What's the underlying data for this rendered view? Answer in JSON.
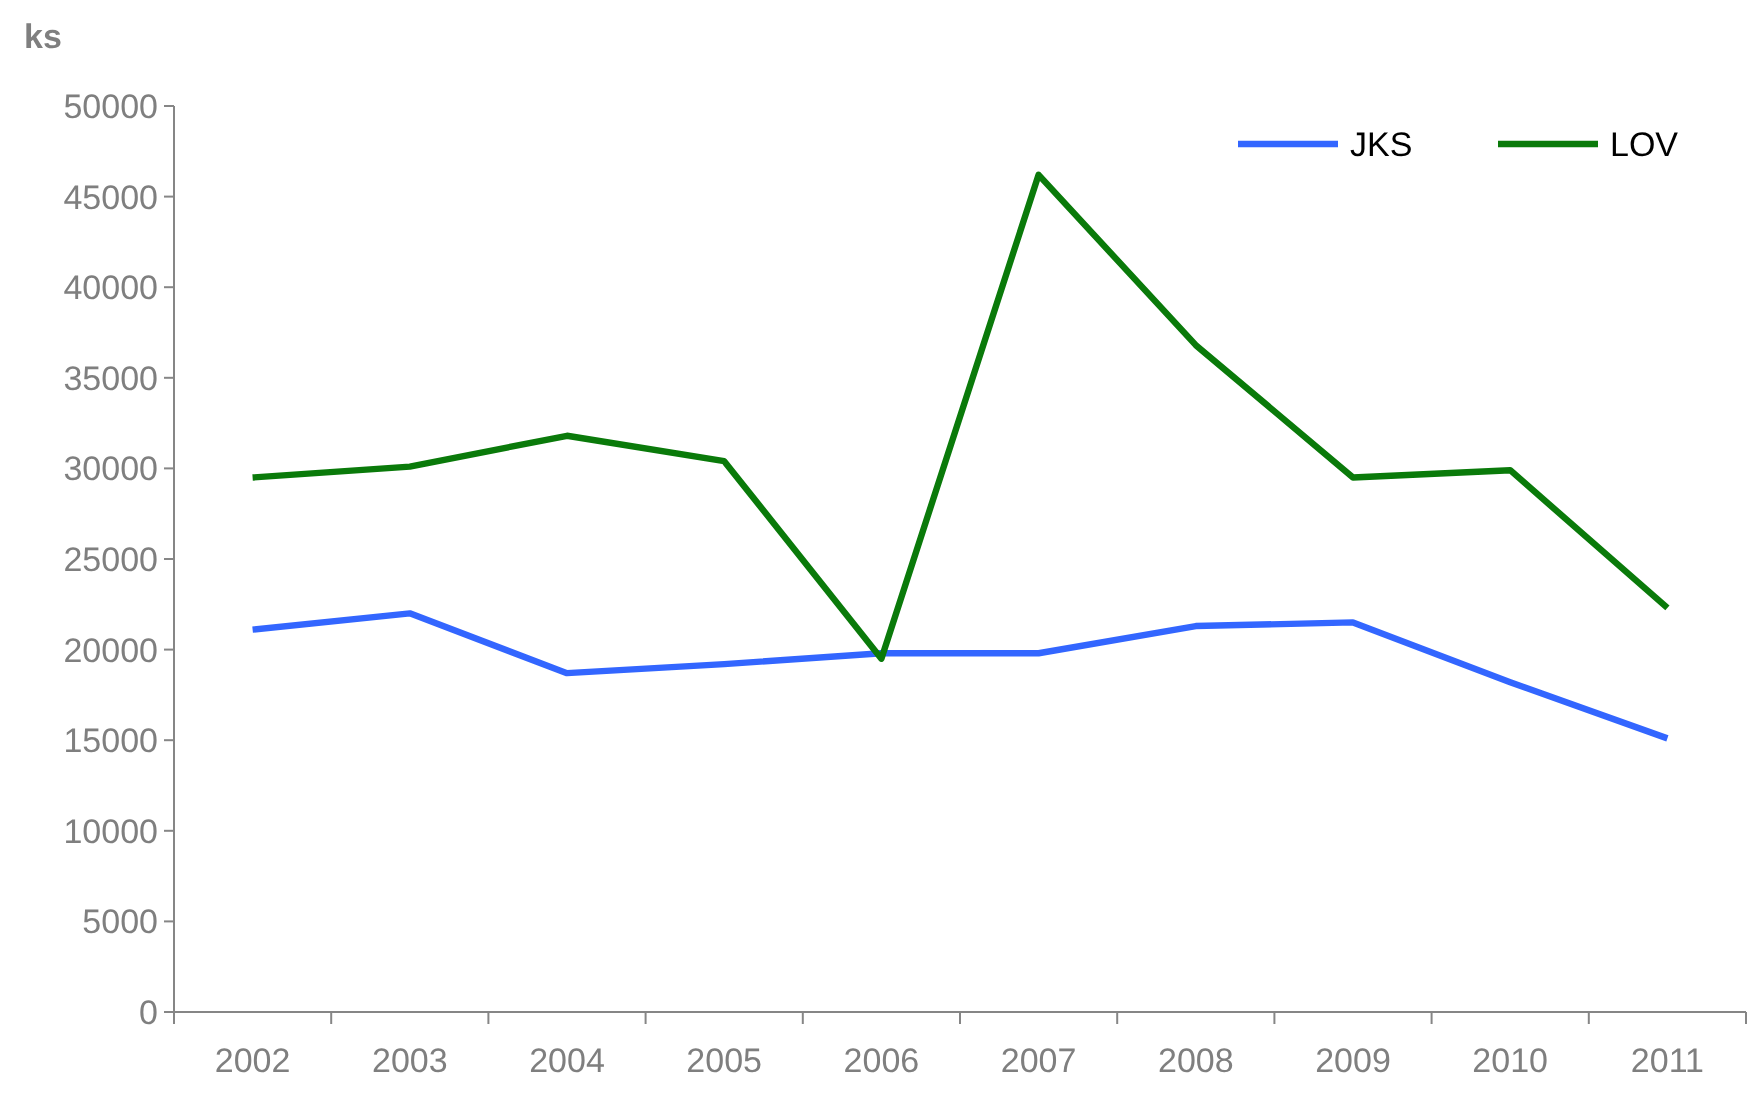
{
  "chart_data": {
    "type": "line",
    "ylabel": "ks",
    "categories": [
      "2002",
      "2003",
      "2004",
      "2005",
      "2006",
      "2007",
      "2008",
      "2009",
      "2010",
      "2011"
    ],
    "series": [
      {
        "name": "JKS",
        "color": "#3366ff",
        "values": [
          21100,
          22000,
          18700,
          19200,
          19800,
          19800,
          21300,
          21500,
          18200,
          15100
        ]
      },
      {
        "name": "LOV",
        "color": "#0a7a0a",
        "values": [
          29500,
          30100,
          31800,
          30400,
          19500,
          46200,
          36800,
          29500,
          29900,
          22300
        ]
      }
    ],
    "ylim": [
      0,
      50000
    ],
    "yticks": [
      0,
      5000,
      10000,
      15000,
      20000,
      25000,
      30000,
      35000,
      40000,
      45000,
      50000
    ],
    "grid": false,
    "legend": "top right",
    "marker": "none",
    "line_style": "solid"
  }
}
